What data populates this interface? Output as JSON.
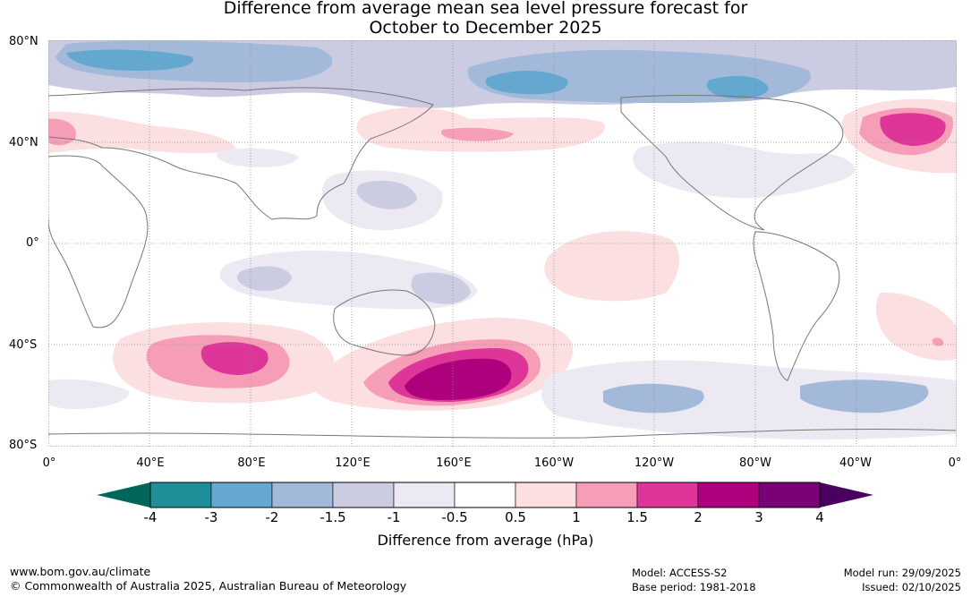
{
  "title": {
    "line1": "Difference from average mean sea level pressure forecast for",
    "line2": "October to December 2025"
  },
  "lat_labels": [
    "80°N",
    "40°N",
    "0°",
    "40°S",
    "80°S"
  ],
  "lon_labels": [
    "0°",
    "40°E",
    "80°E",
    "120°E",
    "160°E",
    "160°W",
    "120°W",
    "80°W",
    "40°W",
    "0°"
  ],
  "colorbar": {
    "title": "Difference from average (hPa)",
    "tick_labels": [
      "-4",
      "-3",
      "-2",
      "-1.5",
      "-1",
      "-0.5",
      "0.5",
      "1",
      "1.5",
      "2",
      "3",
      "4"
    ],
    "under_color": "#00665a",
    "over_color": "#4a0060",
    "bins": [
      {
        "range": "-4 to -3",
        "color": "#1e8e98"
      },
      {
        "range": "-3 to -2",
        "color": "#64a8d0"
      },
      {
        "range": "-2 to -1.5",
        "color": "#a3b9da"
      },
      {
        "range": "-1.5 to -1",
        "color": "#cbcce2"
      },
      {
        "range": "-1 to -0.5",
        "color": "#ede9f2"
      },
      {
        "range": "-0.5 to 0.5",
        "color": "#ffffff"
      },
      {
        "range": "0.5 to 1",
        "color": "#fcdfe0"
      },
      {
        "range": "1 to 1.5",
        "color": "#f69eb7"
      },
      {
        "range": "1.5 to 2",
        "color": "#dd3598"
      },
      {
        "range": "2 to 3",
        "color": "#ae017e"
      },
      {
        "range": "3 to 4",
        "color": "#7a0177"
      }
    ]
  },
  "anomaly_regions": [
    {
      "name": "arctic-low",
      "level": "-1.5 to -2",
      "color": "#a3b9da"
    },
    {
      "name": "north-atlantic-high",
      "level": "2",
      "color": "#dd3598"
    },
    {
      "name": "southern-indian-ocean-high",
      "level": "2",
      "color": "#dd3598"
    },
    {
      "name": "new-zealand-high",
      "level": "3",
      "color": "#ae017e"
    },
    {
      "name": "southern-ocean-low",
      "level": "-1.5",
      "color": "#a3b9da"
    }
  ],
  "footer": {
    "url": "www.bom.gov.au/climate",
    "copyright": "© Commonwealth of Australia 2025, Australian Bureau of Meteorology",
    "model": "Model: ACCESS-S2",
    "base_period": "Base period: 1981-2018",
    "model_run": "Model run: 29/09/2025",
    "issued": "Issued: 02/10/2025"
  }
}
